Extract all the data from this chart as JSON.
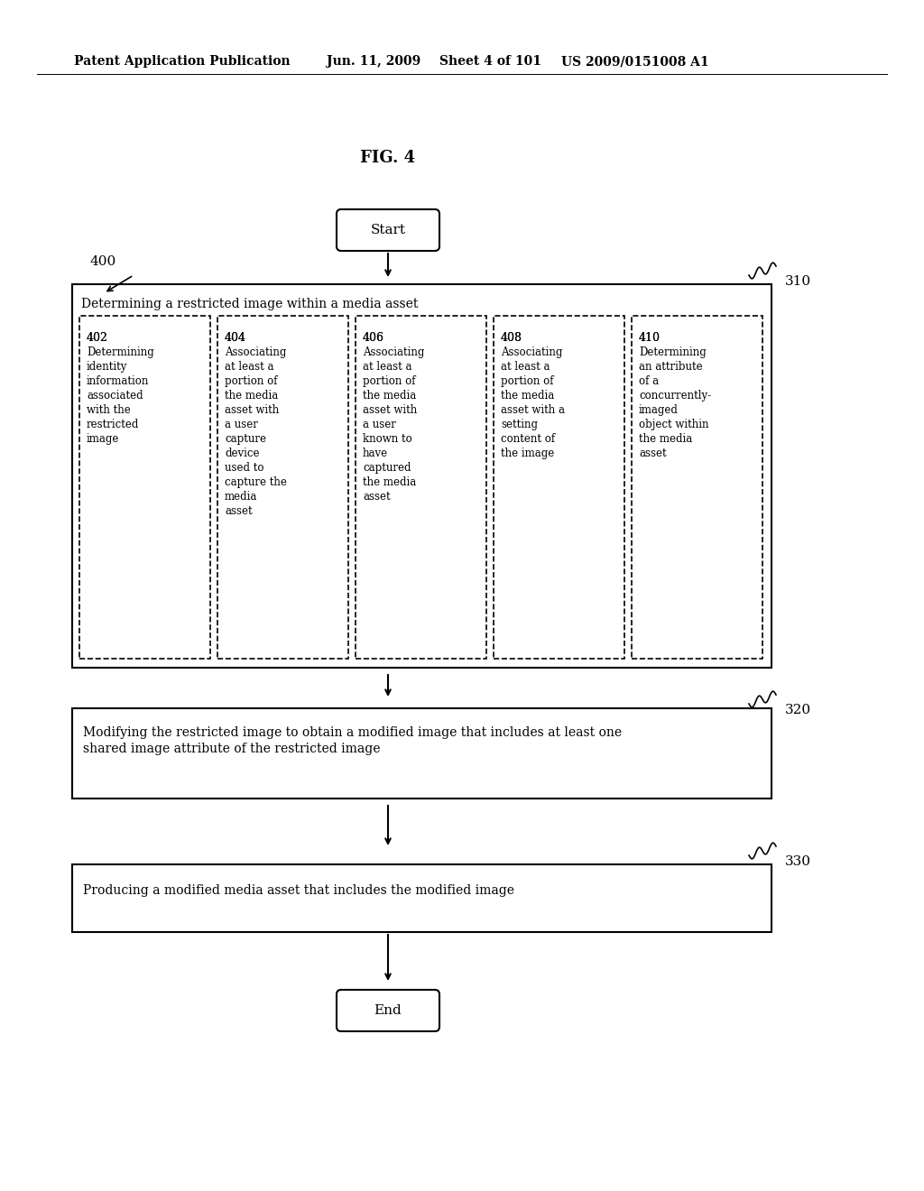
{
  "bg_color": "#ffffff",
  "header_text": "Patent Application Publication",
  "header_date": "Jun. 11, 2009",
  "header_sheet": "Sheet 4 of 101",
  "header_patent": "US 2009/0151008 A1",
  "fig_label": "FIG. 4",
  "start_label": "Start",
  "end_label": "End",
  "label_400": "400",
  "label_310": "310",
  "label_320": "320",
  "label_330": "330",
  "box310_title": "Determining a restricted image within a media asset",
  "box320_text": "Modifying the restricted image to obtain a modified image that includes at least one\nshared image attribute of the restricted image",
  "box330_text": "Producing a modified media asset that includes the modified image",
  "sub_boxes": [
    {
      "label": "402",
      "text": "Determining\nidentity\ninformation\nassociated\nwith the\nrestricted\nimage"
    },
    {
      "label": "404",
      "text": "Associating\nat least a\nportion of\nthe media\nasset with\na user\ncapture\ndevice\nused to\ncapture the\nmedia\nasset"
    },
    {
      "label": "406",
      "text": "Associating\nat least a\nportion of\nthe media\nasset with\na user\nknown to\nhave\ncaptured\nthe media\nasset"
    },
    {
      "label": "408",
      "text": "Associating\nat least a\nportion of\nthe media\nasset with a\nsetting\ncontent of\nthe image"
    },
    {
      "label": "410",
      "text": "Determining\nan attribute\nof a\nconcurrently-\nimaged\nobject within\nthe media\nasset"
    }
  ]
}
